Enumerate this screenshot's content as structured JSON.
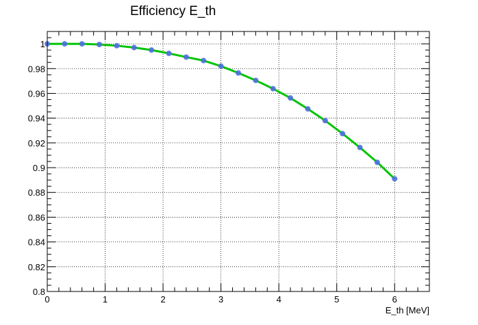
{
  "chart_data": {
    "type": "line",
    "title": "Efficiency E_th",
    "xlabel": "E_th [MeV]",
    "ylabel": "",
    "xlim": [
      0,
      6.6
    ],
    "ylim": [
      0.8,
      1.01
    ],
    "grid": true,
    "x_ticks": [
      "0",
      "1",
      "2",
      "3",
      "4",
      "5",
      "6"
    ],
    "y_ticks": [
      "0.8",
      "0.82",
      "0.84",
      "0.86",
      "0.88",
      "0.9",
      "0.92",
      "0.94",
      "0.96",
      "0.98",
      "1"
    ],
    "series": [
      {
        "marker": "circle",
        "marker_color": "#4f6fe0",
        "line_color": "#00c400",
        "x": [
          0,
          0.3,
          0.6,
          0.9,
          1.2,
          1.5,
          1.8,
          2.1,
          2.4,
          2.7,
          3.0,
          3.3,
          3.6,
          3.9,
          4.2,
          4.5,
          4.8,
          5.1,
          5.4,
          5.7,
          6.0
        ],
        "y": [
          1.0,
          1.0,
          1.0,
          0.9995,
          0.9985,
          0.997,
          0.995,
          0.9923,
          0.9893,
          0.9865,
          0.982,
          0.9765,
          0.9705,
          0.9638,
          0.9563,
          0.9475,
          0.938,
          0.9275,
          0.9163,
          0.9043,
          0.891
        ]
      }
    ]
  }
}
